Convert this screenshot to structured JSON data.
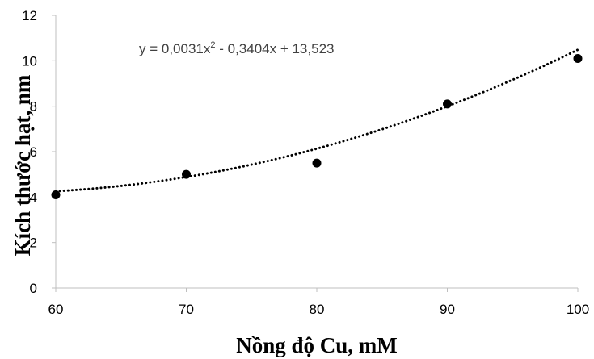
{
  "chart_data": {
    "type": "scatter",
    "xlabel": "Nồng độ Cu, mM",
    "ylabel": "Kích thước hạt, nm",
    "xlim": [
      60,
      100
    ],
    "ylim": [
      0,
      12
    ],
    "xticks": [
      "60",
      "70",
      "80",
      "90",
      "100"
    ],
    "yticks": [
      "0",
      "2",
      "4",
      "6",
      "8",
      "10",
      "12"
    ],
    "grid": false,
    "series": [
      {
        "x": [
          60,
          70,
          80,
          90,
          100
        ],
        "y": [
          4.1,
          5.0,
          5.5,
          8.1,
          10.1
        ],
        "color": "#000000"
      }
    ],
    "trendline": {
      "type": "polynomial",
      "coefficients": [
        0.0031,
        -0.3404,
        13.523
      ],
      "style": "dotted",
      "color": "#000000",
      "equation": {
        "prefix": "y = 0,0031x",
        "superscript": "2",
        "suffix": " - 0,3404x + 13,523"
      }
    }
  }
}
